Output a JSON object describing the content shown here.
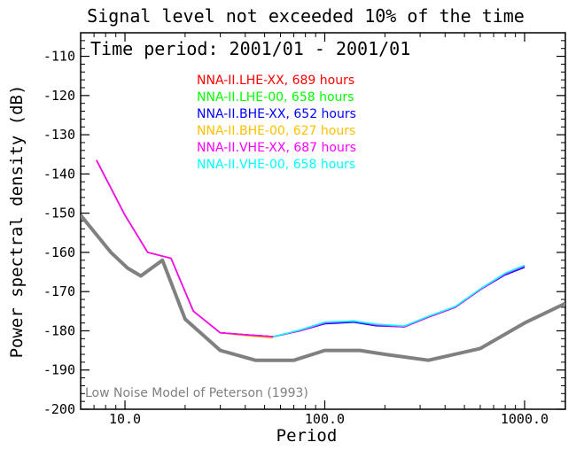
{
  "chart_data": {
    "type": "line",
    "title": "Signal level not exceeded 10% of the time",
    "subtitle": "Time period: 2001/01 - 2001/01",
    "xlabel": "Period",
    "ylabel": "Power spectral density (dB)",
    "xscale": "log",
    "xlim": [
      6.0,
      1600.0
    ],
    "ylim": [
      -200,
      -104
    ],
    "xticks": [
      10.0,
      100.0,
      1000.0
    ],
    "xtick_labels": [
      "10.0",
      "100.0",
      "1000.0"
    ],
    "yticks": [
      -200,
      -190,
      -180,
      -170,
      -160,
      -150,
      -140,
      -130,
      -120,
      -110
    ],
    "ytick_labels": [
      "-200",
      "-190",
      "-180",
      "-170",
      "-160",
      "-150",
      "-140",
      "-130",
      "-120",
      "-110"
    ],
    "grid": false,
    "legend_position": "top-center",
    "series": [
      {
        "name": "NNA-II.LHE-XX, 689 hours",
        "color": "#ff0000",
        "x": [
          7.2,
          10,
          13,
          17,
          22,
          30,
          40,
          55,
          75,
          100,
          140,
          180,
          250,
          330,
          450,
          600,
          800,
          1000
        ],
        "y": [
          -136.5,
          -150.5,
          -160,
          -161.5,
          -175,
          -180.5,
          -181,
          -181.5,
          -180,
          -178,
          -177.5,
          -178.5,
          -179,
          -176.5,
          -174,
          -169.5,
          -165.5,
          -163.5
        ]
      },
      {
        "name": "NNA-II.LHE-00, 658 hours",
        "color": "#00ff00",
        "x": [
          7.2,
          10,
          13,
          17,
          22,
          30,
          40,
          55,
          75,
          100,
          140,
          180,
          250,
          330,
          450,
          600,
          800,
          1000
        ],
        "y": [
          -136.5,
          -150.5,
          -160,
          -161.5,
          -175,
          -180.5,
          -181,
          -181.5,
          -180,
          -178,
          -177.5,
          -178.5,
          -179,
          -176.5,
          -174,
          -169.5,
          -165.5,
          -163.5
        ]
      },
      {
        "name": "NNA-II.BHE-XX, 652 hours",
        "color": "#0000ff",
        "x": [
          7.2,
          10,
          13,
          17,
          22,
          30,
          40,
          55,
          75,
          100,
          140,
          180,
          250,
          330,
          450,
          600,
          800,
          1000
        ],
        "y": [
          -136.5,
          -150.5,
          -160,
          -161.5,
          -175,
          -180.5,
          -181,
          -181.5,
          -180,
          -178.2,
          -177.8,
          -178.7,
          -179,
          -176.5,
          -174,
          -169.5,
          -165.7,
          -163.8
        ]
      },
      {
        "name": "NNA-II.BHE-00, 627 hours",
        "color": "#ffc000",
        "x": [
          7.2,
          10,
          13,
          17,
          22,
          30,
          40,
          55
        ],
        "y": [
          -136.5,
          -150.5,
          -160,
          -161.5,
          -175,
          -180.5,
          -181.2,
          -181.8
        ]
      },
      {
        "name": "NNA-II.VHE-XX, 687 hours",
        "color": "#ff00ff",
        "x": [
          7.2,
          10,
          13,
          17,
          22,
          30,
          40,
          55,
          75,
          100,
          140,
          180,
          250,
          330,
          450,
          600,
          800,
          1000
        ],
        "y": [
          -136.5,
          -150.5,
          -160,
          -161.5,
          -175,
          -180.5,
          -181,
          -181.5,
          -180,
          -178,
          -177.5,
          -178.5,
          -179,
          -176.5,
          -174,
          -169.5,
          -165.5,
          -163.5
        ]
      },
      {
        "name": "NNA-II.VHE-00, 658 hours",
        "color": "#00ffff",
        "x": [
          55,
          75,
          100,
          140,
          180,
          250,
          330,
          450,
          600,
          800,
          1000
        ],
        "y": [
          -181.5,
          -179.8,
          -177.8,
          -177.5,
          -178.3,
          -178.8,
          -176.3,
          -173.8,
          -169.3,
          -165.3,
          -163.3
        ]
      },
      {
        "name": "Low Noise Model of Peterson (1993)",
        "color": "#808080",
        "x": [
          6.0,
          8.5,
          10.3,
          12.0,
          15.4,
          20.0,
          30.0,
          45.0,
          70.0,
          100.0,
          150.0,
          200.0,
          330.0,
          600.0,
          1000.0,
          1600.0
        ],
        "y": [
          -150.5,
          -160,
          -164,
          -166,
          -162,
          -177,
          -185,
          -187.5,
          -187.5,
          -185,
          -185,
          -186,
          -187.5,
          -184.5,
          -178,
          -173
        ]
      }
    ],
    "annotation": "Low Noise Model of Peterson (1993)"
  }
}
